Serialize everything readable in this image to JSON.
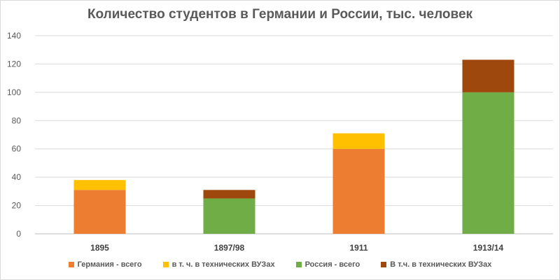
{
  "chart_data": {
    "type": "bar",
    "stacked": true,
    "title": "Количество студентов в Германии и России, тыс. человек",
    "xlabel": "",
    "ylabel": "",
    "categories": [
      "1895",
      "1897/98",
      "1911",
      "1913/14"
    ],
    "ylim": [
      0,
      140
    ],
    "yticks": [
      0,
      20,
      40,
      60,
      80,
      100,
      120,
      140
    ],
    "grid": true,
    "legend_position": "bottom",
    "series": [
      {
        "name": "Германия - всего",
        "color": "#ed7d31",
        "values": [
          31,
          null,
          60,
          null
        ]
      },
      {
        "name": "в т. ч. в технических ВУЗах",
        "color": "#ffc000",
        "values": [
          7,
          null,
          11,
          null
        ]
      },
      {
        "name": "Россия - всего",
        "color": "#70ad47",
        "values": [
          null,
          25,
          null,
          100
        ]
      },
      {
        "name": "В т.ч. в технических ВУЗах",
        "color": "#9e480e",
        "values": [
          null,
          6,
          null,
          23
        ]
      }
    ]
  }
}
